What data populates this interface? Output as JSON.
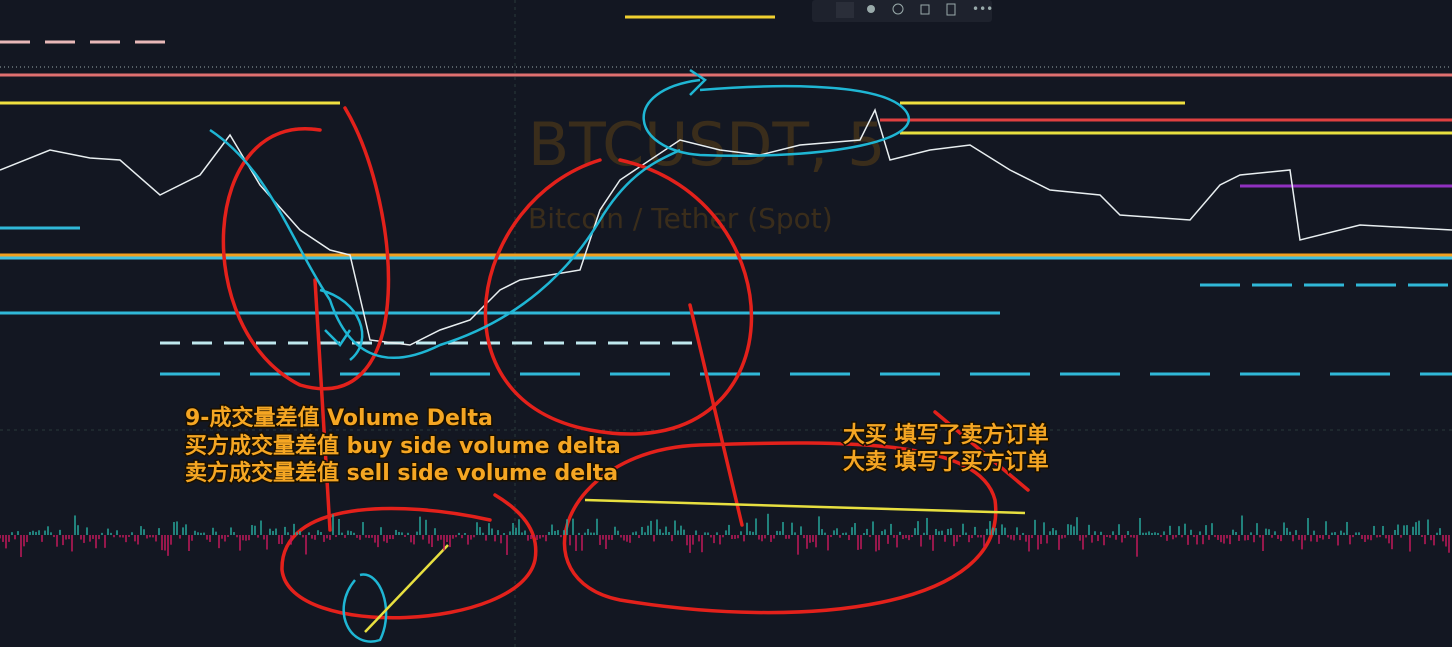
{
  "watermark": {
    "symbol": "BTCUSDT, 5",
    "description": "Bitcoin / Tether (Spot)"
  },
  "annotations": {
    "left": [
      "9-成交量差值 Volume Delta",
      "买方成交量差值 buy side volume delta",
      "卖方成交量差值 sell side volume delta"
    ],
    "right": [
      "大买 填写了卖方订单",
      "大卖 填写了买方订单"
    ]
  }
}
